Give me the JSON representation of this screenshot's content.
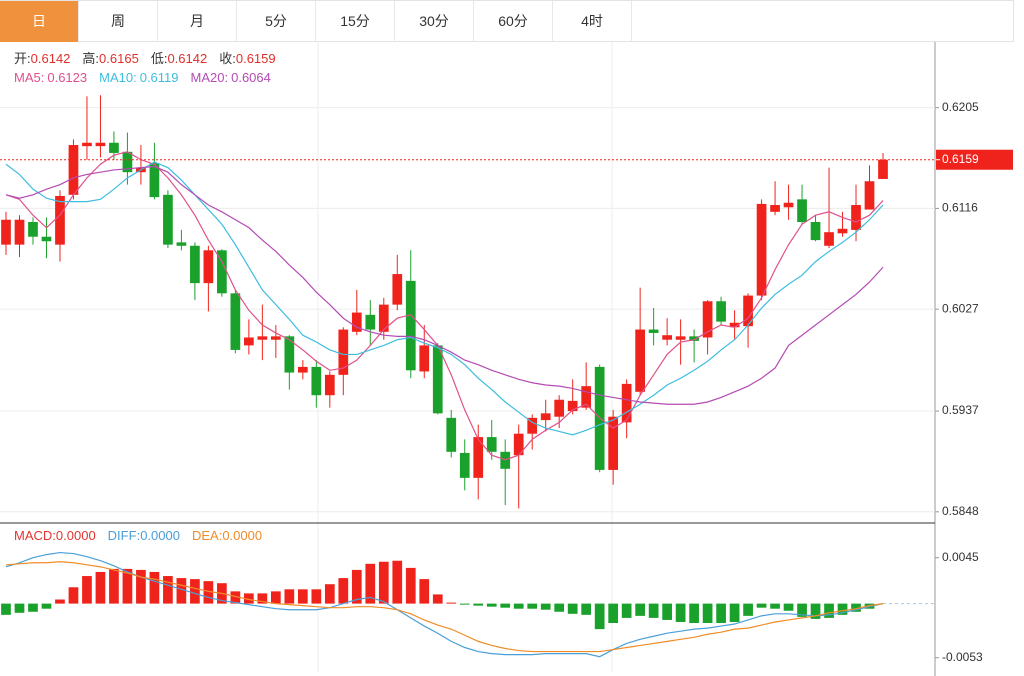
{
  "tabs": [
    "日",
    "周",
    "月",
    "5分",
    "15分",
    "30分",
    "60分",
    "4时"
  ],
  "active_tab": 0,
  "chart_data": [
    {
      "type": "candlestick",
      "separator": ":",
      "ohlc_labels": [
        "开",
        "高",
        "低",
        "收"
      ],
      "up_color": "#f0231c",
      "down_color": "#1aa12b",
      "label_color": "#e0302a",
      "ylim": [
        0.5839,
        0.6263
      ],
      "yticks": [
        0.6205,
        0.6116,
        0.6027,
        0.5937,
        0.5848
      ],
      "last": 0.6159,
      "grid": true,
      "open": [
        0.6084,
        0.6084,
        0.6104,
        0.6091,
        0.6084,
        0.6128,
        0.6171,
        0.6171,
        0.6174,
        0.6166,
        0.6148,
        0.6156,
        0.6128,
        0.6086,
        0.6083,
        0.605,
        0.6079,
        0.6041,
        0.5995,
        0.6,
        0.6,
        0.6003,
        0.5971,
        0.5976,
        0.5951,
        0.5969,
        0.6007,
        0.6022,
        0.6007,
        0.6031,
        0.6052,
        0.5972,
        0.5995,
        0.5931,
        0.59,
        0.5878,
        0.5914,
        0.5901,
        0.5898,
        0.5917,
        0.5929,
        0.5932,
        0.5937,
        0.594,
        0.5976,
        0.5885,
        0.5927,
        0.5954,
        0.6009,
        0.6,
        0.6,
        0.6003,
        0.6002,
        0.6034,
        0.6011,
        0.6012,
        0.6039,
        0.6113,
        0.6117,
        0.6124,
        0.6104,
        0.6083,
        0.6094,
        0.6097,
        0.6115,
        0.6142
      ],
      "high": [
        0.6113,
        0.611,
        0.6108,
        0.6108,
        0.6132,
        0.6177,
        0.6215,
        0.6216,
        0.6184,
        0.6183,
        0.6172,
        0.6174,
        0.6132,
        0.6097,
        0.6086,
        0.6083,
        0.608,
        0.6044,
        0.6018,
        0.6031,
        0.6013,
        0.6004,
        0.5982,
        0.5982,
        0.5972,
        0.6011,
        0.6044,
        0.6035,
        0.6037,
        0.6075,
        0.6079,
        0.6013,
        0.5997,
        0.5938,
        0.5912,
        0.5925,
        0.5929,
        0.5912,
        0.5925,
        0.5934,
        0.5947,
        0.5951,
        0.5965,
        0.598,
        0.5978,
        0.5938,
        0.5965,
        0.6046,
        0.6028,
        0.6019,
        0.6018,
        0.6009,
        0.6035,
        0.6038,
        0.6026,
        0.6041,
        0.6124,
        0.614,
        0.6137,
        0.6137,
        0.611,
        0.6152,
        0.6113,
        0.6137,
        0.6154,
        0.6165
      ],
      "low": [
        0.6075,
        0.6073,
        0.6084,
        0.6072,
        0.6069,
        0.6124,
        0.6159,
        0.6161,
        0.6159,
        0.6137,
        0.6137,
        0.6124,
        0.6081,
        0.6079,
        0.6035,
        0.6025,
        0.6038,
        0.5988,
        0.5987,
        0.5982,
        0.5984,
        0.5956,
        0.5965,
        0.594,
        0.594,
        0.5951,
        0.6004,
        0.5995,
        0.6,
        0.6026,
        0.5966,
        0.5966,
        0.5934,
        0.5896,
        0.5867,
        0.5859,
        0.5894,
        0.5854,
        0.5851,
        0.5903,
        0.5919,
        0.5922,
        0.5934,
        0.5938,
        0.5883,
        0.5872,
        0.5913,
        0.5951,
        0.5995,
        0.5995,
        0.5978,
        0.598,
        0.5987,
        0.6013,
        0.6,
        0.5993,
        0.6035,
        0.611,
        0.6106,
        0.6102,
        0.6087,
        0.6081,
        0.6091,
        0.6087,
        0.6115,
        0.6142
      ],
      "close": [
        0.6106,
        0.6106,
        0.6091,
        0.6087,
        0.6127,
        0.6172,
        0.6174,
        0.6174,
        0.6165,
        0.6148,
        0.6152,
        0.6126,
        0.6084,
        0.6083,
        0.605,
        0.6079,
        0.6041,
        0.5991,
        0.6002,
        0.6003,
        0.6003,
        0.5971,
        0.5976,
        0.5951,
        0.5969,
        0.6009,
        0.6024,
        0.6009,
        0.6031,
        0.6058,
        0.5973,
        0.5995,
        0.5935,
        0.5901,
        0.5878,
        0.5914,
        0.5901,
        0.5886,
        0.5917,
        0.5931,
        0.5935,
        0.5947,
        0.5946,
        0.5959,
        0.5885,
        0.5932,
        0.5961,
        0.6009,
        0.6006,
        0.6004,
        0.6003,
        0.5999,
        0.6034,
        0.6016,
        0.6015,
        0.6039,
        0.612,
        0.6119,
        0.6121,
        0.6104,
        0.6088,
        0.6095,
        0.6098,
        0.6119,
        0.614,
        0.6159
      ],
      "series": [
        {
          "name": "MA5",
          "color": "#e0508c",
          "values": [
            0.6128,
            0.6124,
            0.611,
            0.6099,
            0.611,
            0.6128,
            0.6143,
            0.6155,
            0.6163,
            0.6166,
            0.6159,
            0.6155,
            0.6143,
            0.6128,
            0.611,
            0.6088,
            0.6069,
            0.6044,
            0.6026,
            0.6013,
            0.6006,
            0.6,
            0.5991,
            0.5981,
            0.5973,
            0.5975,
            0.5982,
            0.5995,
            0.6009,
            0.6019,
            0.6022,
            0.6009,
            0.5995,
            0.5969,
            0.5938,
            0.5912,
            0.5898,
            0.5894,
            0.5898,
            0.5912,
            0.592,
            0.5927,
            0.5938,
            0.5943,
            0.5931,
            0.5922,
            0.5929,
            0.5951,
            0.5969,
            0.5987,
            0.5998,
            0.6,
            0.6007,
            0.6013,
            0.6011,
            0.6019,
            0.6037,
            0.6062,
            0.6084,
            0.6102,
            0.611,
            0.6113,
            0.6108,
            0.6104,
            0.611,
            0.6123
          ]
        },
        {
          "name": "MA10",
          "color": "#3dbde0",
          "values": [
            0.6155,
            0.6146,
            0.6133,
            0.6125,
            0.6122,
            0.6122,
            0.6122,
            0.6124,
            0.6133,
            0.6143,
            0.615,
            0.6157,
            0.6152,
            0.6141,
            0.6128,
            0.6115,
            0.6102,
            0.6084,
            0.6064,
            0.6044,
            0.6031,
            0.6018,
            0.6004,
            0.5998,
            0.5991,
            0.5987,
            0.5987,
            0.5991,
            0.5995,
            0.6,
            0.6002,
            0.5997,
            0.5993,
            0.5987,
            0.5978,
            0.5966,
            0.5956,
            0.5945,
            0.5936,
            0.5927,
            0.5922,
            0.5919,
            0.5916,
            0.592,
            0.5925,
            0.5929,
            0.5936,
            0.5943,
            0.5951,
            0.596,
            0.5966,
            0.5973,
            0.5981,
            0.5991,
            0.6,
            0.6013,
            0.6028,
            0.604,
            0.6049,
            0.6057,
            0.6069,
            0.6078,
            0.6086,
            0.6095,
            0.6106,
            0.6119
          ]
        },
        {
          "name": "MA20",
          "color": "#b44bb4",
          "values": [
            0.6128,
            0.6125,
            0.6128,
            0.6133,
            0.6137,
            0.6143,
            0.6146,
            0.6148,
            0.615,
            0.6151,
            0.6152,
            0.6153,
            0.6148,
            0.6137,
            0.6128,
            0.6119,
            0.6113,
            0.6106,
            0.6099,
            0.6088,
            0.6078,
            0.6066,
            0.6055,
            0.6042,
            0.6031,
            0.6019,
            0.6011,
            0.6007,
            0.6004,
            0.6003,
            0.6003,
            0.6,
            0.5995,
            0.5989,
            0.5982,
            0.5978,
            0.5973,
            0.5969,
            0.5965,
            0.5962,
            0.596,
            0.5959,
            0.5957,
            0.5954,
            0.5951,
            0.5949,
            0.5947,
            0.5945,
            0.5944,
            0.5943,
            0.5943,
            0.5943,
            0.5945,
            0.5949,
            0.5954,
            0.5959,
            0.5966,
            0.5975,
            0.5995,
            0.6004,
            0.6013,
            0.6022,
            0.6031,
            0.604,
            0.6051,
            0.6064
          ]
        }
      ]
    },
    {
      "type": "macd",
      "separator": ":",
      "ylim": [
        -0.0067,
        0.0077
      ],
      "yticks": [
        0.0045,
        -0.0053
      ],
      "series": [
        {
          "name": "MACD",
          "kind": "histogram",
          "color": "#e3342f",
          "up_color": "#f0231c",
          "down_color": "#1aa12b",
          "legend_value": "0.0000",
          "values": [
            -0.0011,
            -0.0009,
            -0.0008,
            -0.0005,
            0.0004,
            0.0016,
            0.0027,
            0.0031,
            0.0034,
            0.0034,
            0.0033,
            0.0031,
            0.0027,
            0.0025,
            0.0024,
            0.0022,
            0.002,
            0.0012,
            0.001,
            0.001,
            0.0012,
            0.0014,
            0.0014,
            0.0014,
            0.0019,
            0.0025,
            0.0033,
            0.0039,
            0.0041,
            0.0042,
            0.0035,
            0.0024,
            0.0009,
            0.0001,
            -0.0001,
            -0.0002,
            -0.0003,
            -0.0004,
            -0.0005,
            -0.0005,
            -0.0006,
            -0.0008,
            -0.001,
            -0.0011,
            -0.0025,
            -0.0019,
            -0.0014,
            -0.0012,
            -0.0014,
            -0.0016,
            -0.0018,
            -0.0019,
            -0.0019,
            -0.0019,
            -0.0018,
            -0.0012,
            -0.0004,
            -0.0005,
            -0.0007,
            -0.0013,
            -0.0015,
            -0.0014,
            -0.0011,
            -0.0008,
            -0.0005,
            0
          ]
        },
        {
          "name": "DIFF",
          "kind": "line",
          "color": "#4a9fd8",
          "legend_value": "0.0000",
          "values": [
            0.0036,
            0.004,
            0.0045,
            0.0048,
            0.005,
            0.0049,
            0.0046,
            0.0042,
            0.0037,
            0.0031,
            0.0026,
            0.0022,
            0.0018,
            0.0014,
            0.001,
            0.0006,
            0.0003,
            0.0001,
            -0.0001,
            -0.0003,
            -0.0005,
            -0.0006,
            -0.0006,
            -0.0006,
            -0.0004,
            0,
            0.0004,
            0.0006,
            0.0002,
            -0.0006,
            -0.0014,
            -0.0022,
            -0.0029,
            -0.0037,
            -0.0043,
            -0.0047,
            -0.0049,
            -0.005,
            -0.005,
            -0.005,
            -0.0049,
            -0.0049,
            -0.0049,
            -0.0049,
            -0.0052,
            -0.0045,
            -0.0039,
            -0.0035,
            -0.0032,
            -0.0029,
            -0.0027,
            -0.0025,
            -0.0024,
            -0.0022,
            -0.002,
            -0.0016,
            -0.0012,
            -0.001,
            -0.001,
            -0.0011,
            -0.0012,
            -0.0011,
            -0.0009,
            -0.0006,
            -0.0003,
            0
          ]
        },
        {
          "name": "DEA",
          "kind": "line",
          "color": "#f08c28",
          "legend_value": "0.0000",
          "values": [
            0.0038,
            0.0039,
            0.004,
            0.004,
            0.0041,
            0.004,
            0.0038,
            0.0036,
            0.0033,
            0.003,
            0.0026,
            0.0024,
            0.0021,
            0.0018,
            0.0015,
            0.0012,
            0.001,
            0.0007,
            0.0004,
            0.0002,
            0,
            -0.0001,
            -0.0002,
            -0.0003,
            -0.0004,
            -0.0004,
            -0.0003,
            -0.0003,
            -0.0004,
            -0.0006,
            -0.001,
            -0.0016,
            -0.0021,
            -0.0025,
            -0.0031,
            -0.0037,
            -0.0041,
            -0.0044,
            -0.0046,
            -0.0047,
            -0.0047,
            -0.0047,
            -0.0047,
            -0.0047,
            -0.0047,
            -0.0045,
            -0.0043,
            -0.0041,
            -0.0039,
            -0.0037,
            -0.0035,
            -0.0033,
            -0.003,
            -0.0028,
            -0.0025,
            -0.0024,
            -0.0021,
            -0.0018,
            -0.0016,
            -0.0014,
            -0.0012,
            -0.0009,
            -0.0007,
            -0.0005,
            -0.0002,
            0
          ]
        }
      ]
    }
  ]
}
